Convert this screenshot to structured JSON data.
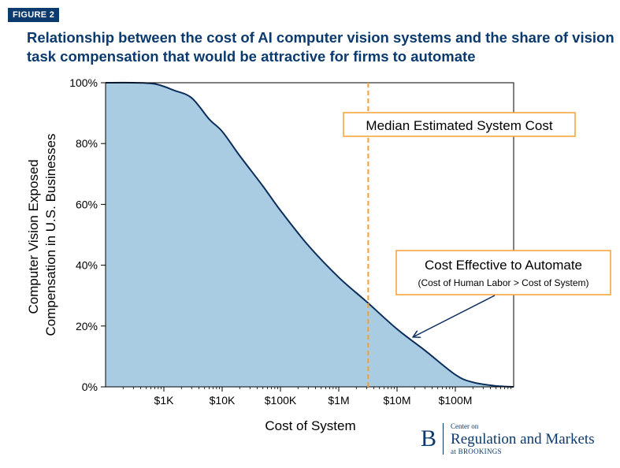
{
  "figure_label": "FIGURE 2",
  "title": "Relationship between the cost of AI computer vision systems and the share of vision task compensation that would be attractive for firms to automate",
  "logo": {
    "mark": "B",
    "line1": "Center on",
    "line2": "Regulation and Markets",
    "line3": "at BROOKINGS"
  },
  "colors": {
    "curve": "#0b2e5c",
    "fill": "#a9cce3",
    "median_line": "#f5a030",
    "annotation_border": "#f5a030",
    "brand": "#0b3a6e"
  },
  "chart_data": {
    "type": "area",
    "x_scale": "log",
    "xlabel": "Cost of System",
    "ylabel_lines": [
      "Computer Vision Exposed",
      "Compensation in U.S. Businesses"
    ],
    "xlim": [
      100,
      1000000000
    ],
    "ylim": [
      0,
      100
    ],
    "x_ticks": [
      {
        "value": 1000,
        "label": "$1K"
      },
      {
        "value": 10000,
        "label": "$10K"
      },
      {
        "value": 100000,
        "label": "$100K"
      },
      {
        "value": 1000000,
        "label": "$1M"
      },
      {
        "value": 10000000,
        "label": "$10M"
      },
      {
        "value": 100000000,
        "label": "$100M"
      }
    ],
    "y_ticks": [
      {
        "value": 0,
        "label": "0%"
      },
      {
        "value": 20,
        "label": "20%"
      },
      {
        "value": 40,
        "label": "40%"
      },
      {
        "value": 60,
        "label": "60%"
      },
      {
        "value": 80,
        "label": "80%"
      },
      {
        "value": 100,
        "label": "100%"
      }
    ],
    "series": [
      {
        "points": [
          [
            100,
            100
          ],
          [
            300,
            100
          ],
          [
            700,
            99.6
          ],
          [
            1500,
            97.5
          ],
          [
            3000,
            95
          ],
          [
            6000,
            88
          ],
          [
            10000,
            84
          ],
          [
            20000,
            76
          ],
          [
            50000,
            66
          ],
          [
            100000,
            58
          ],
          [
            300000,
            46.5
          ],
          [
            1000000,
            36
          ],
          [
            3000000,
            28
          ],
          [
            10000000,
            19
          ],
          [
            30000000,
            12
          ],
          [
            100000000,
            4
          ],
          [
            200000000,
            1.5
          ],
          [
            500000000,
            0.3
          ],
          [
            1000000000,
            0
          ]
        ]
      }
    ],
    "median_line": {
      "x": 3200000,
      "label": "Median Estimated System Cost"
    },
    "annotation": {
      "title": "Cost Effective to Automate",
      "subtitle": "(Cost of Human Labor > Cost of System)",
      "arrow_target": [
        17000000,
        17
      ]
    }
  }
}
